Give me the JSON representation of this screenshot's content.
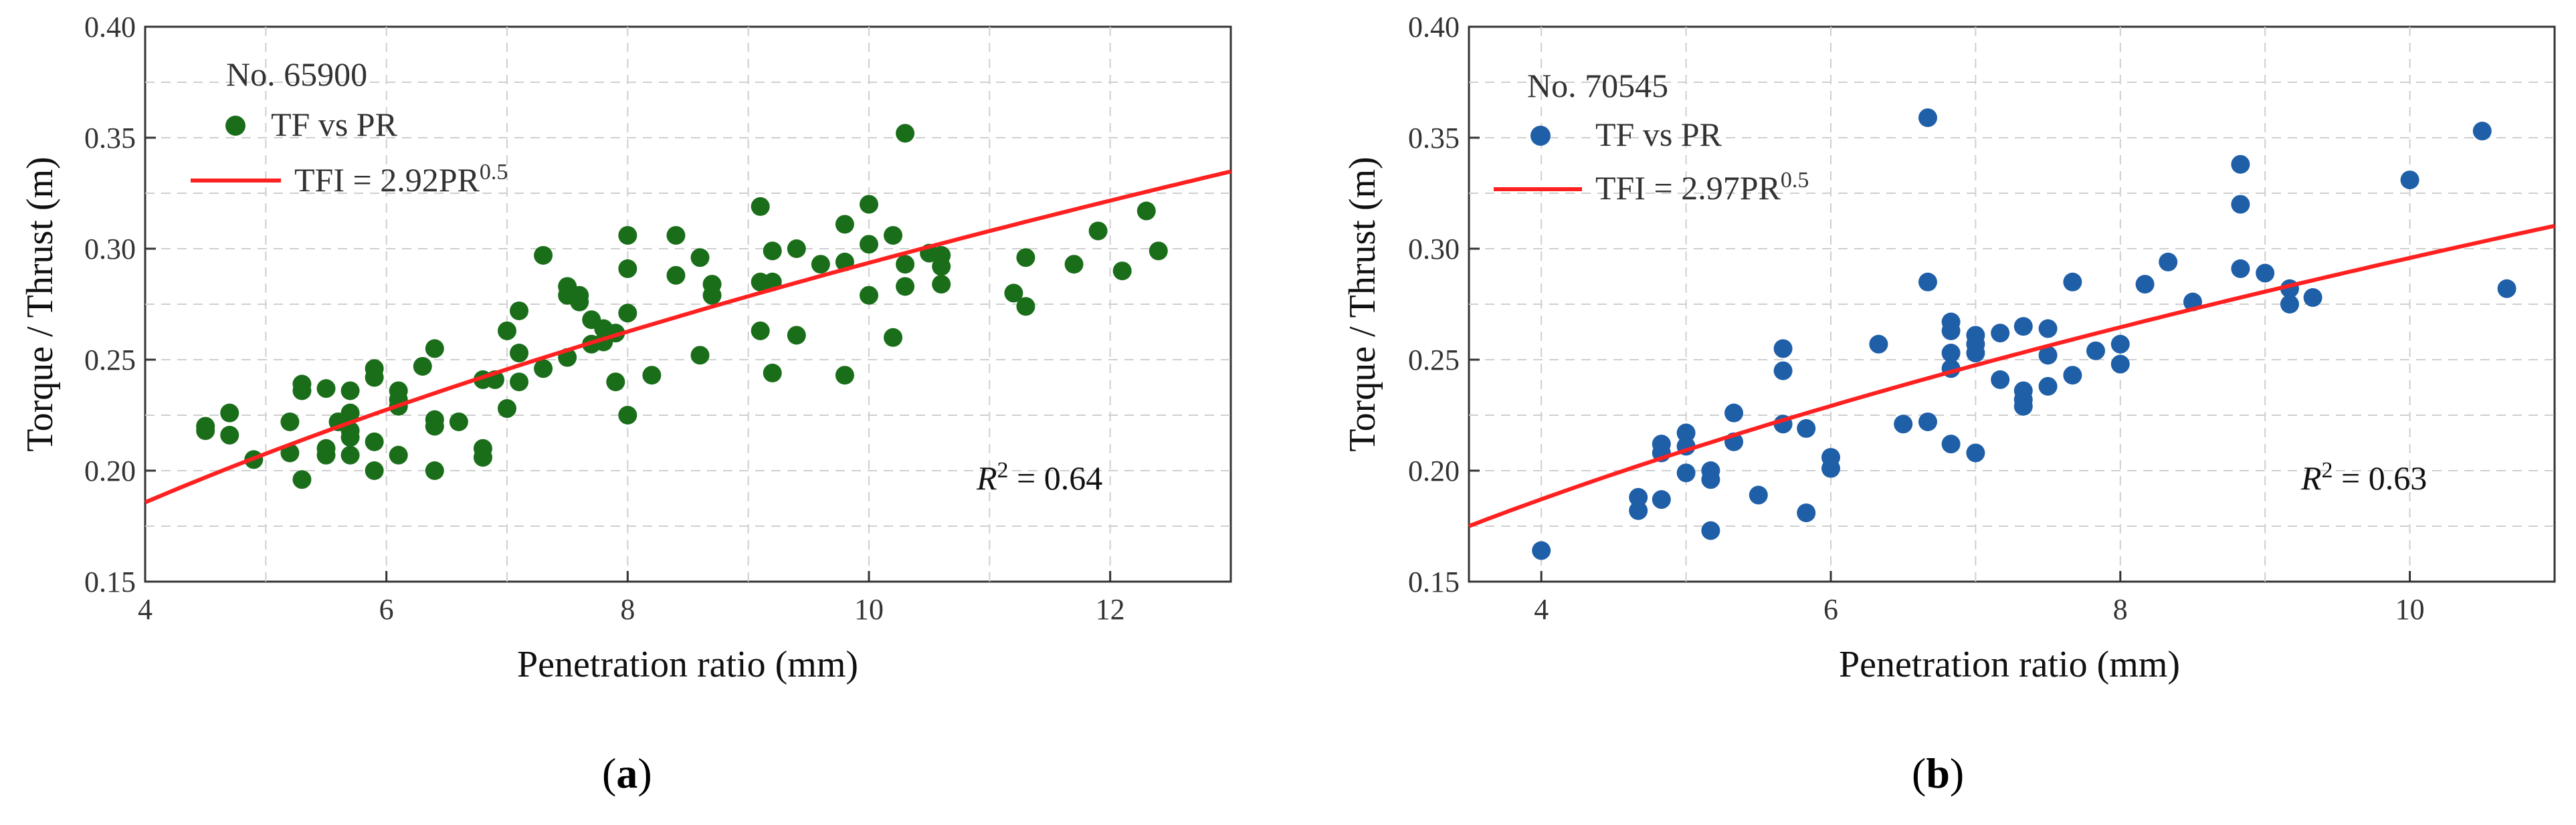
{
  "chart_data": [
    {
      "type": "scatter",
      "panel_label": "a",
      "station": "No. 65900",
      "xlabel": "Penetration ratio (mm)",
      "ylabel": "Torque / Thrust (m)",
      "xlim": [
        4,
        13
      ],
      "ylim": [
        0.15,
        0.4
      ],
      "xticks": [
        4,
        6,
        8,
        10,
        12
      ],
      "yticks": [
        0.15,
        0.2,
        0.25,
        0.3,
        0.35,
        0.4
      ],
      "grid": true,
      "legend_position": "top-left",
      "series": [
        {
          "name": "TF vs PR",
          "color": "#1a6e1a",
          "points": [
            [
              4.5,
              0.22
            ],
            [
              4.5,
              0.218
            ],
            [
              4.7,
              0.226
            ],
            [
              4.7,
              0.216
            ],
            [
              4.9,
              0.205
            ],
            [
              5.2,
              0.222
            ],
            [
              5.2,
              0.208
            ],
            [
              5.3,
              0.239
            ],
            [
              5.3,
              0.236
            ],
            [
              5.3,
              0.196
            ],
            [
              5.5,
              0.237
            ],
            [
              5.5,
              0.21
            ],
            [
              5.5,
              0.207
            ],
            [
              5.6,
              0.222
            ],
            [
              5.7,
              0.236
            ],
            [
              5.7,
              0.226
            ],
            [
              5.7,
              0.218
            ],
            [
              5.7,
              0.215
            ],
            [
              5.7,
              0.207
            ],
            [
              5.9,
              0.246
            ],
            [
              5.9,
              0.242
            ],
            [
              5.9,
              0.213
            ],
            [
              5.9,
              0.2
            ],
            [
              6.1,
              0.236
            ],
            [
              6.1,
              0.232
            ],
            [
              6.1,
              0.229
            ],
            [
              6.1,
              0.207
            ],
            [
              6.3,
              0.247
            ],
            [
              6.4,
              0.255
            ],
            [
              6.4,
              0.223
            ],
            [
              6.4,
              0.22
            ],
            [
              6.4,
              0.2
            ],
            [
              6.6,
              0.222
            ],
            [
              6.8,
              0.241
            ],
            [
              6.8,
              0.21
            ],
            [
              6.8,
              0.206
            ],
            [
              6.9,
              0.241
            ],
            [
              7.0,
              0.263
            ],
            [
              7.0,
              0.228
            ],
            [
              7.1,
              0.272
            ],
            [
              7.1,
              0.253
            ],
            [
              7.1,
              0.24
            ],
            [
              7.3,
              0.297
            ],
            [
              7.3,
              0.246
            ],
            [
              7.5,
              0.283
            ],
            [
              7.5,
              0.279
            ],
            [
              7.5,
              0.251
            ],
            [
              7.6,
              0.279
            ],
            [
              7.6,
              0.276
            ],
            [
              7.7,
              0.268
            ],
            [
              7.7,
              0.257
            ],
            [
              7.8,
              0.264
            ],
            [
              7.8,
              0.258
            ],
            [
              7.9,
              0.262
            ],
            [
              7.9,
              0.24
            ],
            [
              8.0,
              0.306
            ],
            [
              8.0,
              0.291
            ],
            [
              8.0,
              0.271
            ],
            [
              8.0,
              0.225
            ],
            [
              8.2,
              0.243
            ],
            [
              8.4,
              0.306
            ],
            [
              8.4,
              0.288
            ],
            [
              8.6,
              0.296
            ],
            [
              8.6,
              0.252
            ],
            [
              8.7,
              0.284
            ],
            [
              8.7,
              0.279
            ],
            [
              9.1,
              0.319
            ],
            [
              9.1,
              0.285
            ],
            [
              9.1,
              0.263
            ],
            [
              9.2,
              0.299
            ],
            [
              9.2,
              0.285
            ],
            [
              9.2,
              0.244
            ],
            [
              9.4,
              0.3
            ],
            [
              9.4,
              0.261
            ],
            [
              9.6,
              0.293
            ],
            [
              9.8,
              0.311
            ],
            [
              9.8,
              0.294
            ],
            [
              9.8,
              0.243
            ],
            [
              10.0,
              0.32
            ],
            [
              10.0,
              0.302
            ],
            [
              10.0,
              0.279
            ],
            [
              10.2,
              0.306
            ],
            [
              10.2,
              0.26
            ],
            [
              10.3,
              0.352
            ],
            [
              10.3,
              0.293
            ],
            [
              10.3,
              0.283
            ],
            [
              10.5,
              0.298
            ],
            [
              10.6,
              0.297
            ],
            [
              10.6,
              0.292
            ],
            [
              10.6,
              0.284
            ],
            [
              11.2,
              0.28
            ],
            [
              11.3,
              0.296
            ],
            [
              11.3,
              0.274
            ],
            [
              11.7,
              0.293
            ],
            [
              11.9,
              0.308
            ],
            [
              12.1,
              0.29
            ],
            [
              12.3,
              0.317
            ],
            [
              12.4,
              0.299
            ]
          ]
        },
        {
          "name": "TFI = 2.92PR",
          "name_superscript": "0.5",
          "color": "#ff2020",
          "fit": {
            "coef": 2.92,
            "power": 0.5,
            "scale": 0.0318
          }
        }
      ],
      "annotation": {
        "label": "R",
        "superscript": "2",
        "rest": " = 0.64"
      }
    },
    {
      "type": "scatter",
      "panel_label": "b",
      "station": "No. 70545",
      "xlabel": "Penetration ratio (mm)",
      "ylabel": "Torque / Thrust (m)",
      "xlim": [
        3.5,
        11
      ],
      "ylim": [
        0.15,
        0.4
      ],
      "xticks": [
        4,
        6,
        8,
        10
      ],
      "yticks": [
        0.15,
        0.2,
        0.25,
        0.3,
        0.35,
        0.4
      ],
      "grid": true,
      "legend_position": "top-left",
      "series": [
        {
          "name": "TF vs PR",
          "color": "#1f5fa8",
          "points": [
            [
              4.0,
              0.164
            ],
            [
              4.67,
              0.188
            ],
            [
              4.67,
              0.182
            ],
            [
              4.83,
              0.212
            ],
            [
              4.83,
              0.208
            ],
            [
              4.83,
              0.187
            ],
            [
              5.0,
              0.217
            ],
            [
              5.0,
              0.211
            ],
            [
              5.0,
              0.199
            ],
            [
              5.17,
              0.2
            ],
            [
              5.17,
              0.196
            ],
            [
              5.17,
              0.173
            ],
            [
              5.33,
              0.226
            ],
            [
              5.33,
              0.213
            ],
            [
              5.5,
              0.189
            ],
            [
              5.67,
              0.255
            ],
            [
              5.67,
              0.245
            ],
            [
              5.67,
              0.221
            ],
            [
              5.83,
              0.219
            ],
            [
              5.83,
              0.181
            ],
            [
              6.0,
              0.206
            ],
            [
              6.0,
              0.201
            ],
            [
              6.33,
              0.257
            ],
            [
              6.5,
              0.221
            ],
            [
              6.67,
              0.359
            ],
            [
              6.67,
              0.285
            ],
            [
              6.67,
              0.222
            ],
            [
              6.83,
              0.267
            ],
            [
              6.83,
              0.263
            ],
            [
              6.83,
              0.253
            ],
            [
              6.83,
              0.246
            ],
            [
              6.83,
              0.212
            ],
            [
              7.0,
              0.261
            ],
            [
              7.0,
              0.257
            ],
            [
              7.0,
              0.253
            ],
            [
              7.0,
              0.208
            ],
            [
              7.17,
              0.262
            ],
            [
              7.17,
              0.241
            ],
            [
              7.33,
              0.265
            ],
            [
              7.33,
              0.236
            ],
            [
              7.33,
              0.232
            ],
            [
              7.33,
              0.229
            ],
            [
              7.5,
              0.264
            ],
            [
              7.5,
              0.252
            ],
            [
              7.5,
              0.238
            ],
            [
              7.67,
              0.285
            ],
            [
              7.67,
              0.243
            ],
            [
              7.83,
              0.254
            ],
            [
              8.0,
              0.257
            ],
            [
              8.0,
              0.248
            ],
            [
              8.17,
              0.284
            ],
            [
              8.33,
              0.294
            ],
            [
              8.5,
              0.276
            ],
            [
              8.83,
              0.338
            ],
            [
              8.83,
              0.32
            ],
            [
              8.83,
              0.291
            ],
            [
              9.0,
              0.289
            ],
            [
              9.17,
              0.282
            ],
            [
              9.17,
              0.275
            ],
            [
              9.33,
              0.278
            ],
            [
              10.0,
              0.331
            ],
            [
              10.5,
              0.353
            ],
            [
              10.67,
              0.282
            ]
          ]
        },
        {
          "name": "TFI = 2.97PR",
          "name_superscript": "0.5",
          "color": "#ff2020",
          "fit": {
            "coef": 2.97,
            "power": 0.5,
            "scale": 0.0315
          }
        }
      ],
      "annotation": {
        "label": "R",
        "superscript": "2",
        "rest": " = 0.63"
      }
    }
  ]
}
